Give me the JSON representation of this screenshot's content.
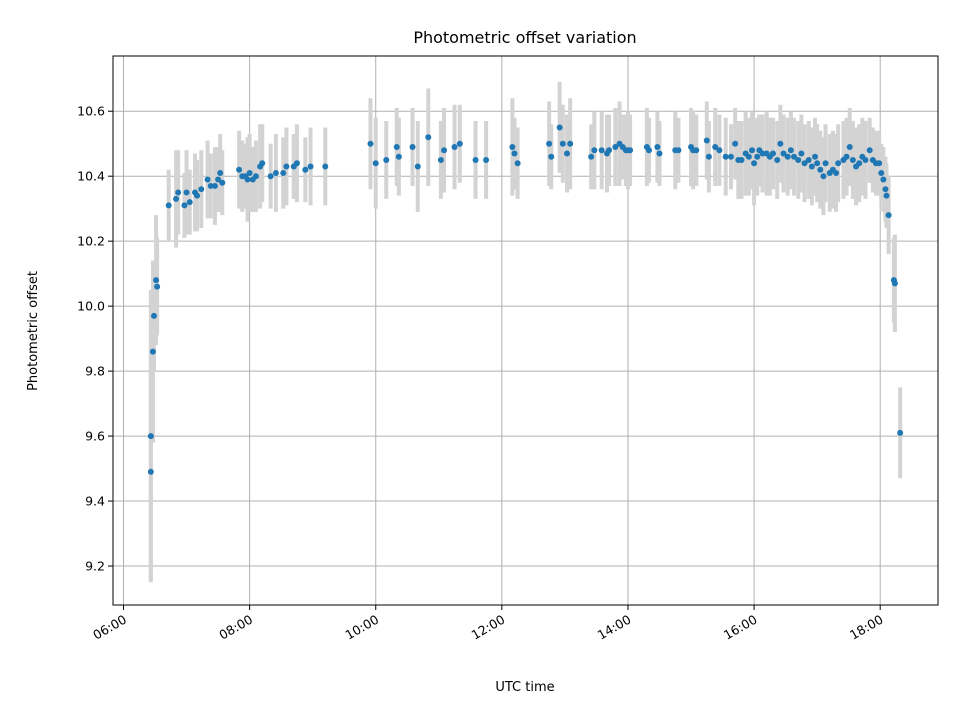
{
  "chart_data": {
    "type": "scatter",
    "title": "Photometric offset variation",
    "xlabel": "UTC time",
    "ylabel": "Photometric offset",
    "x_format": "HH:MM",
    "xlim": [
      "05:50",
      "18:55"
    ],
    "ylim": [
      9.08,
      10.77
    ],
    "xticks": [
      "06:00",
      "08:00",
      "10:00",
      "12:00",
      "14:00",
      "16:00",
      "18:00"
    ],
    "yticks": [
      9.2,
      9.4,
      9.6,
      9.8,
      10.0,
      10.2,
      10.4,
      10.6
    ],
    "ytick_labels": [
      "9.2",
      "9.4",
      "9.6",
      "9.8",
      "10.0",
      "10.2",
      "10.4",
      "10.6"
    ],
    "grid": true,
    "point_color": "#1f77b4",
    "errorbar_color": "#d3d3d3",
    "series": [
      {
        "points": [
          [
            "06:26",
            9.6,
            0.45
          ],
          [
            "06:26",
            9.49,
            0.33
          ],
          [
            "06:28",
            9.86,
            0.28
          ],
          [
            "06:29",
            9.97,
            0.17
          ],
          [
            "06:31",
            10.08,
            0.2
          ],
          [
            "06:32",
            10.06,
            0.15
          ],
          [
            "06:43",
            10.31,
            0.11
          ],
          [
            "06:50",
            10.33,
            0.15
          ],
          [
            "06:52",
            10.35,
            0.13
          ],
          [
            "06:58",
            10.31,
            0.1
          ],
          [
            "07:00",
            10.35,
            0.13
          ],
          [
            "07:03",
            10.32,
            0.1
          ],
          [
            "07:08",
            10.35,
            0.12
          ],
          [
            "07:10",
            10.34,
            0.11
          ],
          [
            "07:14",
            10.36,
            0.12
          ],
          [
            "07:20",
            10.39,
            0.12
          ],
          [
            "07:23",
            10.37,
            0.1
          ],
          [
            "07:27",
            10.37,
            0.12
          ],
          [
            "07:30",
            10.39,
            0.1
          ],
          [
            "07:32",
            10.41,
            0.12
          ],
          [
            "07:34",
            10.38,
            0.1
          ],
          [
            "07:50",
            10.42,
            0.12
          ],
          [
            "07:53",
            10.4,
            0.11
          ],
          [
            "07:56",
            10.4,
            0.1
          ],
          [
            "07:58",
            10.39,
            0.13
          ],
          [
            "08:00",
            10.41,
            0.12
          ],
          [
            "08:03",
            10.39,
            0.1
          ],
          [
            "08:06",
            10.4,
            0.11
          ],
          [
            "08:10",
            10.43,
            0.13
          ],
          [
            "08:12",
            10.44,
            0.12
          ],
          [
            "08:20",
            10.4,
            0.1
          ],
          [
            "08:25",
            10.41,
            0.12
          ],
          [
            "08:32",
            10.41,
            0.11
          ],
          [
            "08:35",
            10.43,
            0.12
          ],
          [
            "08:42",
            10.43,
            0.1
          ],
          [
            "08:45",
            10.44,
            0.12
          ],
          [
            "08:53",
            10.42,
            0.1
          ],
          [
            "08:58",
            10.43,
            0.12
          ],
          [
            "09:12",
            10.43,
            0.12
          ],
          [
            "09:55",
            10.5,
            0.14
          ],
          [
            "10:00",
            10.44,
            0.14
          ],
          [
            "10:10",
            10.45,
            0.12
          ],
          [
            "10:20",
            10.49,
            0.12
          ],
          [
            "10:22",
            10.46,
            0.12
          ],
          [
            "10:35",
            10.49,
            0.12
          ],
          [
            "10:40",
            10.43,
            0.14
          ],
          [
            "10:50",
            10.52,
            0.15
          ],
          [
            "11:02",
            10.45,
            0.12
          ],
          [
            "11:05",
            10.48,
            0.13
          ],
          [
            "11:15",
            10.49,
            0.13
          ],
          [
            "11:20",
            10.5,
            0.12
          ],
          [
            "11:35",
            10.45,
            0.12
          ],
          [
            "11:45",
            10.45,
            0.12
          ],
          [
            "12:10",
            10.49,
            0.15
          ],
          [
            "12:12",
            10.47,
            0.11
          ],
          [
            "12:15",
            10.44,
            0.11
          ],
          [
            "12:45",
            10.5,
            0.13
          ],
          [
            "12:47",
            10.46,
            0.1
          ],
          [
            "12:55",
            10.55,
            0.14
          ],
          [
            "12:58",
            10.5,
            0.12
          ],
          [
            "13:02",
            10.47,
            0.12
          ],
          [
            "13:05",
            10.5,
            0.14
          ],
          [
            "13:25",
            10.46,
            0.1
          ],
          [
            "13:28",
            10.48,
            0.12
          ],
          [
            "13:35",
            10.48,
            0.12
          ],
          [
            "13:40",
            10.47,
            0.12
          ],
          [
            "13:42",
            10.48,
            0.11
          ],
          [
            "13:48",
            10.49,
            0.12
          ],
          [
            "13:52",
            10.5,
            0.13
          ],
          [
            "13:55",
            10.49,
            0.1
          ],
          [
            "13:58",
            10.48,
            0.11
          ],
          [
            "14:00",
            10.48,
            0.12
          ],
          [
            "14:02",
            10.48,
            0.11
          ],
          [
            "14:18",
            10.49,
            0.12
          ],
          [
            "14:20",
            10.48,
            0.1
          ],
          [
            "14:28",
            10.49,
            0.11
          ],
          [
            "14:30",
            10.47,
            0.1
          ],
          [
            "14:45",
            10.48,
            0.12
          ],
          [
            "14:48",
            10.48,
            0.1
          ],
          [
            "15:00",
            10.49,
            0.12
          ],
          [
            "15:02",
            10.48,
            0.12
          ],
          [
            "15:05",
            10.48,
            0.11
          ],
          [
            "15:15",
            10.51,
            0.12
          ],
          [
            "15:17",
            10.46,
            0.11
          ],
          [
            "15:23",
            10.49,
            0.12
          ],
          [
            "15:27",
            10.48,
            0.11
          ],
          [
            "15:33",
            10.46,
            0.12
          ],
          [
            "15:38",
            10.46,
            0.1
          ],
          [
            "15:42",
            10.5,
            0.11
          ],
          [
            "15:45",
            10.45,
            0.12
          ],
          [
            "15:48",
            10.45,
            0.12
          ],
          [
            "15:52",
            10.47,
            0.13
          ],
          [
            "15:55",
            10.46,
            0.12
          ],
          [
            "15:58",
            10.48,
            0.12
          ],
          [
            "16:00",
            10.44,
            0.13
          ],
          [
            "16:03",
            10.46,
            0.12
          ],
          [
            "16:05",
            10.48,
            0.11
          ],
          [
            "16:08",
            10.47,
            0.12
          ],
          [
            "16:12",
            10.47,
            0.13
          ],
          [
            "16:15",
            10.46,
            0.12
          ],
          [
            "16:18",
            10.47,
            0.11
          ],
          [
            "16:22",
            10.45,
            0.12
          ],
          [
            "16:25",
            10.5,
            0.12
          ],
          [
            "16:28",
            10.47,
            0.12
          ],
          [
            "16:32",
            10.46,
            0.12
          ],
          [
            "16:35",
            10.48,
            0.12
          ],
          [
            "16:38",
            10.46,
            0.12
          ],
          [
            "16:42",
            10.45,
            0.12
          ],
          [
            "16:45",
            10.47,
            0.12
          ],
          [
            "16:48",
            10.44,
            0.12
          ],
          [
            "16:52",
            10.45,
            0.12
          ],
          [
            "16:55",
            10.43,
            0.12
          ],
          [
            "16:58",
            10.46,
            0.12
          ],
          [
            "17:00",
            10.44,
            0.12
          ],
          [
            "17:03",
            10.42,
            0.12
          ],
          [
            "17:06",
            10.4,
            0.12
          ],
          [
            "17:08",
            10.44,
            0.12
          ],
          [
            "17:12",
            10.41,
            0.12
          ],
          [
            "17:15",
            10.42,
            0.12
          ],
          [
            "17:18",
            10.41,
            0.12
          ],
          [
            "17:20",
            10.44,
            0.12
          ],
          [
            "17:25",
            10.45,
            0.12
          ],
          [
            "17:28",
            10.46,
            0.12
          ],
          [
            "17:31",
            10.49,
            0.12
          ],
          [
            "17:34",
            10.45,
            0.12
          ],
          [
            "17:37",
            10.43,
            0.12
          ],
          [
            "17:40",
            10.44,
            0.12
          ],
          [
            "17:43",
            10.46,
            0.12
          ],
          [
            "17:46",
            10.45,
            0.12
          ],
          [
            "17:50",
            10.48,
            0.1
          ],
          [
            "17:53",
            10.45,
            0.1
          ],
          [
            "17:56",
            10.44,
            0.1
          ],
          [
            "17:59",
            10.44,
            0.1
          ],
          [
            "18:01",
            10.41,
            0.09
          ],
          [
            "18:03",
            10.39,
            0.1
          ],
          [
            "18:05",
            10.36,
            0.1
          ],
          [
            "18:06",
            10.34,
            0.1
          ],
          [
            "18:08",
            10.28,
            0.12
          ],
          [
            "18:13",
            10.08,
            0.13
          ],
          [
            "18:14",
            10.07,
            0.15
          ],
          [
            "18:19",
            9.61,
            0.14
          ]
        ]
      }
    ]
  }
}
